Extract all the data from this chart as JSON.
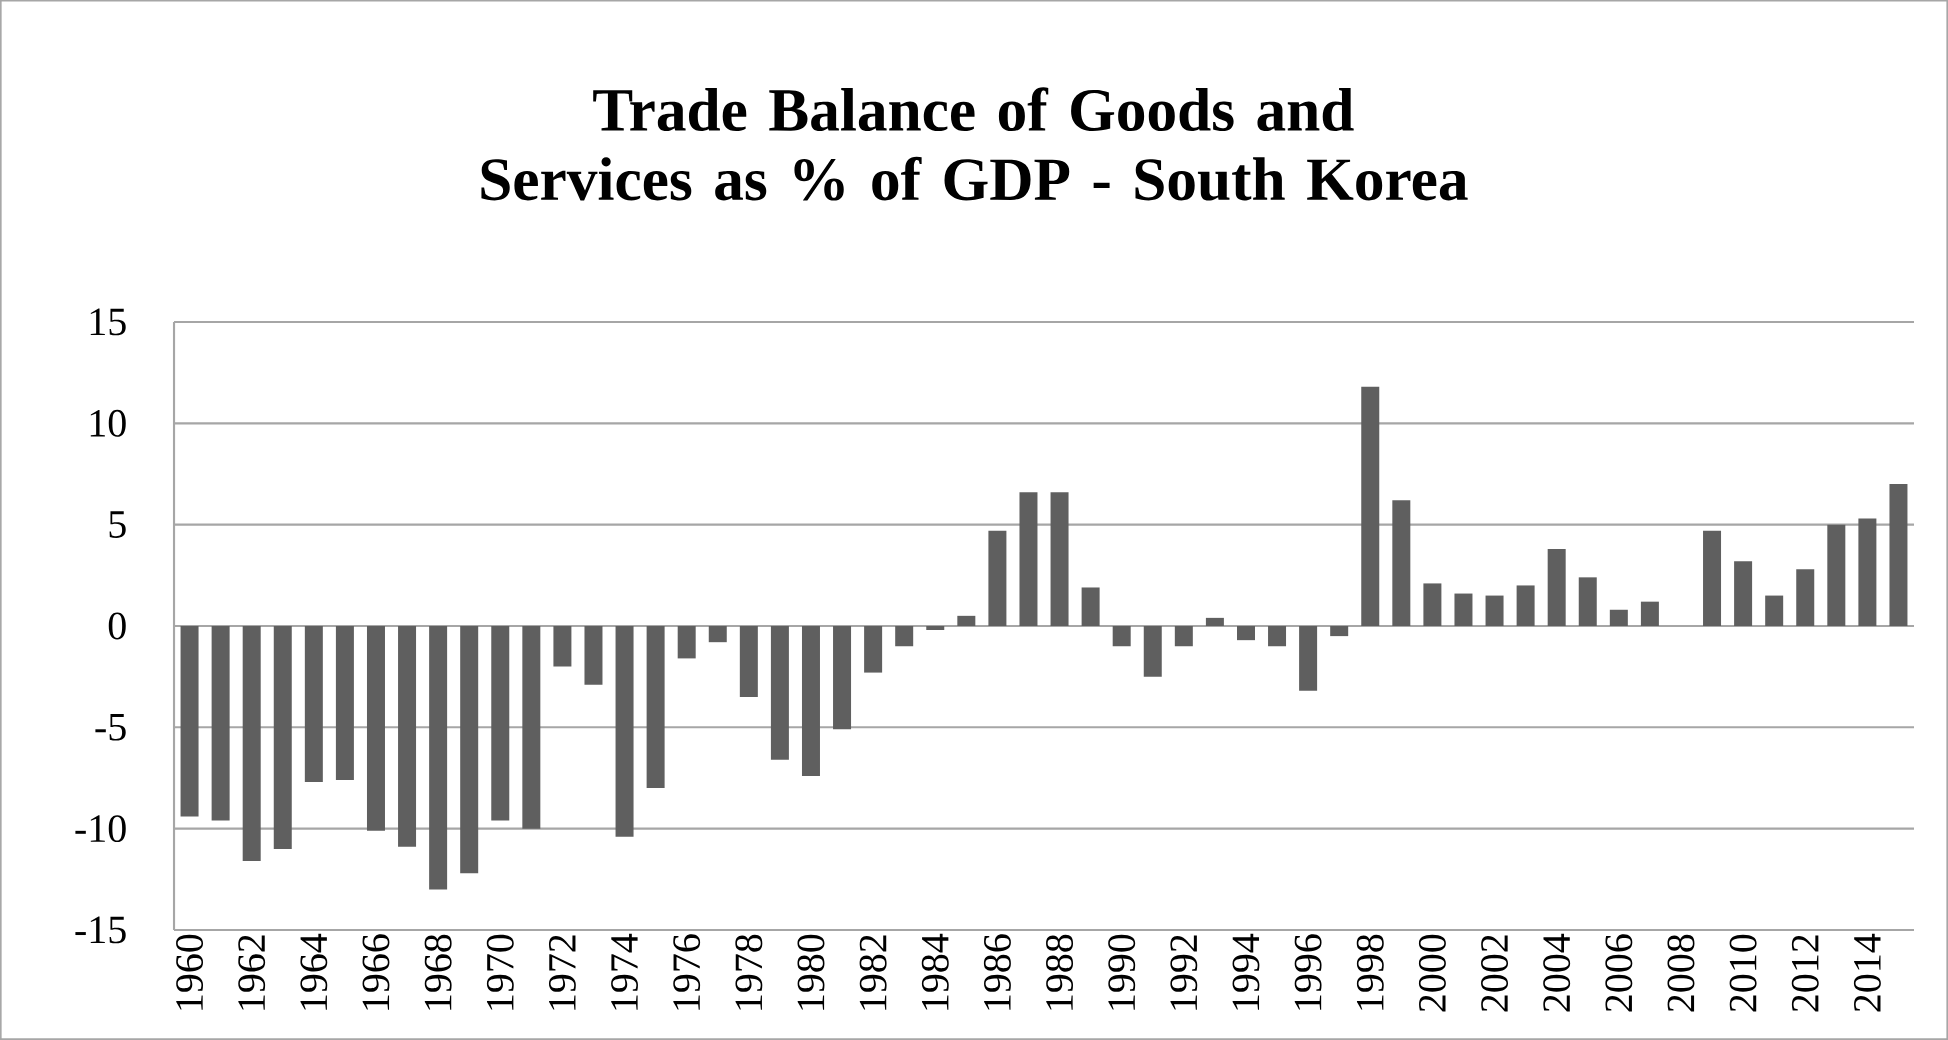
{
  "chart_data": {
    "type": "bar",
    "title": "Trade Balance of Goods and Services as % of GDP - South Korea",
    "categories": [
      "1960",
      null,
      "1962",
      null,
      "1964",
      null,
      "1966",
      null,
      "1968",
      null,
      "1970",
      null,
      "1972",
      null,
      "1974",
      null,
      "1976",
      null,
      "1978",
      null,
      "1980",
      null,
      "1982",
      null,
      "1984",
      null,
      "1986",
      null,
      "1988",
      null,
      "1990",
      null,
      "1992",
      null,
      "1994",
      null,
      "1996",
      null,
      "1998",
      null,
      "2000",
      null,
      "2002",
      null,
      "2004",
      null,
      "2006",
      null,
      "2008",
      null,
      "2010",
      null,
      "2012",
      null,
      "2014",
      null
    ],
    "values": [
      -9.4,
      -9.6,
      -11.6,
      -11.0,
      -7.7,
      -7.6,
      -10.1,
      -10.9,
      -13.0,
      -12.2,
      -9.6,
      -10.0,
      -2.0,
      -2.9,
      -10.4,
      -8.0,
      -1.6,
      -0.8,
      -3.5,
      -6.6,
      -7.4,
      -5.1,
      -2.3,
      -1.0,
      -0.2,
      0.5,
      4.7,
      6.6,
      6.6,
      1.9,
      -1.0,
      -2.5,
      -1.0,
      0.4,
      -0.7,
      -1.0,
      -3.2,
      -0.5,
      11.8,
      6.2,
      2.1,
      1.6,
      1.5,
      2.0,
      3.8,
      2.4,
      0.8,
      1.2,
      0.0,
      4.7,
      3.2,
      1.5,
      2.8,
      5.0,
      5.3,
      7.0
    ],
    "color": "#5f5f5f",
    "ylim": [
      -15,
      15
    ],
    "yticks": [
      -15,
      -10,
      -5,
      0,
      5,
      10,
      15
    ],
    "grid": "y"
  }
}
